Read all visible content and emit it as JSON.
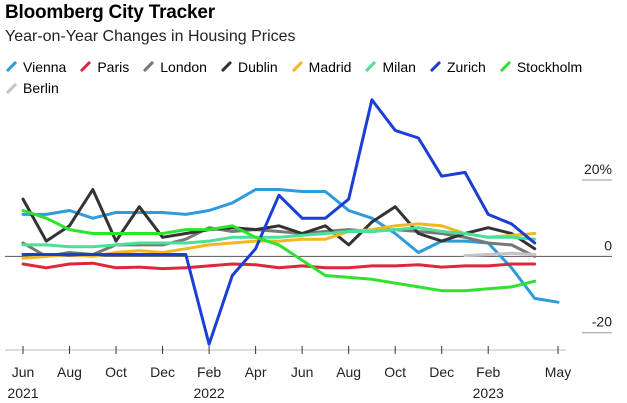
{
  "chart_data": {
    "type": "line",
    "title": "Bloomberg City Tracker",
    "subtitle": "Year-on-Year Changes in Housing Prices",
    "x_labels": [
      "Jun",
      "Aug",
      "Oct",
      "Dec",
      "Feb",
      "Apr",
      "Jun",
      "Aug",
      "Oct",
      "Dec",
      "Feb",
      "May"
    ],
    "year_labels": [
      "2021",
      "2022",
      "2023"
    ],
    "y_ticks": [
      "20%",
      "0",
      "-20"
    ],
    "y_tick_values": [
      20,
      0,
      -20
    ],
    "ylim": [
      -24,
      42
    ],
    "xlim": [
      0,
      23
    ],
    "series": [
      {
        "name": "Vienna",
        "color": "#2d9bdc",
        "x": [
          0,
          1,
          2,
          3,
          4,
          5,
          6,
          7,
          8,
          9,
          10,
          11,
          12,
          13,
          14,
          15,
          16,
          17,
          18,
          19,
          20,
          21,
          22,
          23
        ],
        "values": [
          11,
          11,
          12,
          10,
          11.5,
          11.5,
          11.5,
          11,
          12,
          14,
          17.5,
          17.5,
          17,
          17,
          12,
          10,
          6,
          1,
          4,
          4,
          3.5,
          -3,
          -11,
          -12
        ]
      },
      {
        "name": "Paris",
        "color": "#e0263a",
        "x": [
          0,
          1,
          2,
          3,
          4,
          5,
          6,
          7,
          8,
          9,
          10,
          11,
          12,
          13,
          14,
          15,
          16,
          17,
          18,
          19,
          20,
          21,
          22
        ],
        "values": [
          -2,
          -3,
          -2,
          -1.8,
          -3,
          -2.8,
          -3.2,
          -3,
          -2.5,
          -2,
          -2.2,
          -3,
          -2.5,
          -3,
          -3,
          -2.5,
          -2.5,
          -2.2,
          -2.8,
          -2.5,
          -2.5,
          -2,
          -2
        ]
      },
      {
        "name": "London",
        "color": "#777777",
        "x": [
          0,
          1,
          2,
          3,
          4,
          5,
          6,
          7,
          8,
          9,
          10,
          11,
          12,
          13,
          14,
          15,
          16,
          17,
          18,
          19,
          20,
          21,
          22
        ],
        "values": [
          3.5,
          0,
          1,
          0.5,
          3,
          3,
          3,
          4.5,
          7.5,
          6.5,
          7,
          6.5,
          6,
          6.5,
          7,
          6.5,
          7,
          6.5,
          6,
          5,
          3.5,
          3,
          0
        ]
      },
      {
        "name": "Dublin",
        "color": "#333333",
        "x": [
          0,
          1,
          2,
          3,
          4,
          5,
          6,
          7,
          8,
          9,
          10,
          11,
          12,
          13,
          14,
          15,
          16,
          17,
          18,
          19,
          20,
          21,
          22
        ],
        "values": [
          15,
          4,
          8,
          17.5,
          4,
          13,
          5,
          6,
          7,
          7.5,
          7,
          8,
          6,
          8,
          3,
          9,
          13,
          6,
          4,
          6,
          7.5,
          6,
          2
        ]
      },
      {
        "name": "Madrid",
        "color": "#f2b823",
        "x": [
          0,
          1,
          2,
          3,
          4,
          5,
          6,
          7,
          8,
          9,
          10,
          11,
          12,
          13,
          14,
          15,
          16,
          17,
          18,
          19,
          20,
          21,
          22
        ],
        "values": [
          -0.5,
          0,
          0.5,
          0,
          1,
          1.5,
          1,
          2,
          3,
          3.5,
          4,
          4,
          4.5,
          4.5,
          6.5,
          7,
          8,
          8.5,
          8,
          6,
          5,
          5.5,
          6
        ]
      },
      {
        "name": "Milan",
        "color": "#4ae09a",
        "x": [
          0,
          1,
          2,
          3,
          4,
          5,
          6,
          7,
          8,
          9,
          10,
          11,
          12,
          13,
          14,
          15,
          16,
          17,
          18,
          19,
          20,
          21,
          22
        ],
        "values": [
          3,
          3,
          2.5,
          2.5,
          3,
          3.5,
          3.5,
          3.5,
          4,
          5,
          5,
          5,
          5.5,
          6,
          6.5,
          6.5,
          7,
          7.5,
          6.5,
          6,
          5,
          5,
          4.5
        ]
      },
      {
        "name": "Zurich",
        "color": "#1b3fd6",
        "x": [
          0,
          1,
          2,
          3,
          4,
          5,
          6,
          7,
          8,
          9,
          10,
          11,
          12,
          13,
          14,
          15,
          16,
          17,
          18,
          19,
          20,
          21,
          22
        ],
        "values": [
          0.5,
          0.5,
          0.5,
          0.5,
          0.5,
          0.5,
          0.5,
          0.5,
          -23,
          -5,
          2,
          16,
          10,
          10,
          15,
          41,
          33,
          31,
          21,
          22,
          11,
          8.5,
          3.5
        ]
      },
      {
        "name": "Stockholm",
        "color": "#2ee32e",
        "x": [
          0,
          1,
          2,
          3,
          4,
          5,
          6,
          7,
          8,
          9,
          10,
          11,
          12,
          13,
          14,
          15,
          16,
          17,
          18,
          19,
          20,
          21,
          22
        ],
        "values": [
          12,
          10,
          7,
          6,
          6,
          6,
          6,
          7,
          7,
          8,
          5,
          3,
          -1,
          -5,
          -5.5,
          -6,
          -7,
          -8,
          -9,
          -9,
          -8.5,
          -8,
          -6.5
        ]
      },
      {
        "name": "Berlin",
        "color": "#c4c4c4",
        "x": [
          19,
          20,
          21,
          22
        ],
        "values": [
          0.2,
          0.5,
          0.8,
          0.5
        ]
      }
    ]
  }
}
